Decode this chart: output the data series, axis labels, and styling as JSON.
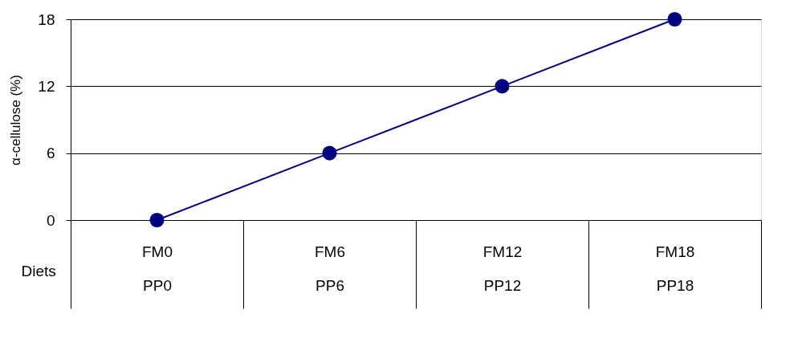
{
  "chart_data": {
    "type": "line",
    "xlabel": "Diets",
    "ylabel": "α-cellulose (%)",
    "categories": [
      "FM0\nPP0",
      "FM6\nPP6",
      "FM12\nPP12",
      "FM18\nPP18"
    ],
    "series": [
      {
        "color": "#000080",
        "values": [
          0,
          6,
          12,
          18
        ]
      }
    ],
    "ylim": [
      0,
      18
    ],
    "yticks": [
      0,
      6,
      12,
      18
    ],
    "grid": "y",
    "marker": "circle",
    "line_style": "solid"
  }
}
